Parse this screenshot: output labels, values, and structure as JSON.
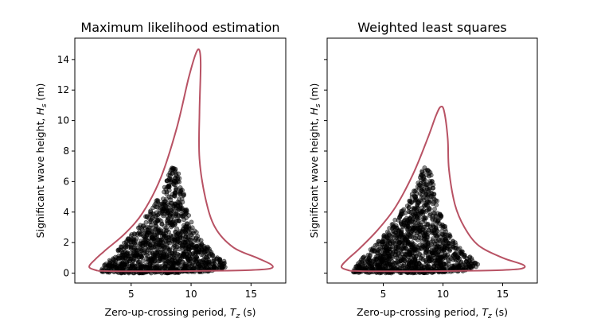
{
  "chart_data": [
    {
      "type": "scatter",
      "title": "Maximum likelihood estimation",
      "xlabel": "Zero-up-crossing period, $T_z$ (s)",
      "ylabel": "Significant wave height, $H_s$ (m)",
      "xlabel_parts": {
        "pre": "Zero-up-crossing period, ",
        "sym": "T",
        "sub": "z",
        "post": " (s)"
      },
      "ylabel_parts": {
        "pre": "Significant wave height, ",
        "sym": "H",
        "sub": "s",
        "post": " (m)"
      },
      "xlim": [
        0.3,
        17.9
      ],
      "ylim": [
        -0.65,
        15.4
      ],
      "xticks": [
        5,
        10,
        15
      ],
      "yticks": [
        0,
        2,
        4,
        6,
        8,
        10,
        12,
        14
      ],
      "show_ytick_labels": true,
      "contour_color": "#b85264",
      "points_color": "#000000",
      "contour": [
        [
          2.2,
          0.15
        ],
        [
          1.5,
          0.4
        ],
        [
          2.0,
          0.9
        ],
        [
          3.0,
          1.6
        ],
        [
          4.5,
          2.6
        ],
        [
          6.0,
          4.0
        ],
        [
          7.5,
          6.3
        ],
        [
          8.8,
          9.5
        ],
        [
          9.8,
          12.8
        ],
        [
          10.4,
          14.4
        ],
        [
          10.7,
          14.6
        ],
        [
          10.8,
          13.6
        ],
        [
          10.7,
          10.5
        ],
        [
          10.7,
          7.5
        ],
        [
          11.2,
          4.9
        ],
        [
          12.0,
          3.0
        ],
        [
          13.5,
          1.7
        ],
        [
          15.5,
          1.0
        ],
        [
          16.7,
          0.55
        ],
        [
          16.6,
          0.3
        ],
        [
          15.0,
          0.2
        ],
        [
          12.0,
          0.15
        ],
        [
          8.0,
          0.12
        ],
        [
          4.0,
          0.12
        ],
        [
          2.2,
          0.15
        ]
      ],
      "point_region": [
        [
          2.4,
          0.05
        ],
        [
          2.8,
          0.6
        ],
        [
          4.0,
          1.6
        ],
        [
          5.5,
          3.0
        ],
        [
          7.0,
          4.6
        ],
        [
          7.8,
          5.8
        ],
        [
          8.2,
          6.8
        ],
        [
          8.8,
          7.1
        ],
        [
          9.1,
          6.2
        ],
        [
          9.6,
          4.5
        ],
        [
          10.1,
          3.2
        ],
        [
          10.8,
          2.2
        ],
        [
          12.0,
          1.2
        ],
        [
          12.8,
          0.8
        ],
        [
          13.0,
          0.4
        ],
        [
          11.5,
          0.1
        ],
        [
          8.0,
          0.0
        ],
        [
          4.0,
          0.0
        ]
      ]
    },
    {
      "type": "scatter",
      "title": "Weighted least squares",
      "xlabel": "Zero-up-crossing period, $T_z$ (s)",
      "ylabel": "Significant wave height, $H_s$ (m)",
      "xlabel_parts": {
        "pre": "Zero-up-crossing period, ",
        "sym": "T",
        "sub": "z",
        "post": " (s)"
      },
      "ylabel_parts": {
        "pre": "Significant wave height, ",
        "sym": "H",
        "sub": "s",
        "post": " (m)"
      },
      "xlim": [
        0.3,
        17.9
      ],
      "ylim": [
        -0.65,
        15.4
      ],
      "xticks": [
        5,
        10,
        15
      ],
      "yticks": [
        0,
        2,
        4,
        6,
        8,
        10,
        12,
        14
      ],
      "show_ytick_labels": false,
      "contour_color": "#b85264",
      "points_color": "#000000",
      "contour": [
        [
          2.2,
          0.15
        ],
        [
          1.5,
          0.4
        ],
        [
          2.0,
          0.9
        ],
        [
          3.0,
          1.6
        ],
        [
          4.5,
          2.8
        ],
        [
          6.0,
          4.3
        ],
        [
          7.5,
          6.5
        ],
        [
          8.7,
          8.8
        ],
        [
          9.4,
          10.3
        ],
        [
          9.8,
          10.9
        ],
        [
          10.1,
          10.6
        ],
        [
          10.4,
          8.8
        ],
        [
          10.5,
          6.8
        ],
        [
          11.0,
          4.5
        ],
        [
          11.8,
          3.0
        ],
        [
          13.0,
          1.8
        ],
        [
          15.0,
          1.0
        ],
        [
          16.7,
          0.55
        ],
        [
          16.6,
          0.3
        ],
        [
          15.0,
          0.2
        ],
        [
          12.0,
          0.15
        ],
        [
          8.0,
          0.12
        ],
        [
          4.0,
          0.12
        ],
        [
          2.2,
          0.15
        ]
      ],
      "point_region": [
        [
          2.4,
          0.05
        ],
        [
          2.8,
          0.6
        ],
        [
          4.0,
          1.6
        ],
        [
          5.5,
          3.0
        ],
        [
          7.0,
          4.6
        ],
        [
          7.8,
          5.8
        ],
        [
          8.2,
          6.8
        ],
        [
          8.8,
          7.1
        ],
        [
          9.1,
          6.2
        ],
        [
          9.6,
          4.5
        ],
        [
          10.1,
          3.2
        ],
        [
          10.8,
          2.2
        ],
        [
          12.0,
          1.2
        ],
        [
          12.8,
          0.8
        ],
        [
          13.0,
          0.4
        ],
        [
          11.5,
          0.1
        ],
        [
          8.0,
          0.0
        ],
        [
          4.0,
          0.0
        ]
      ]
    }
  ]
}
